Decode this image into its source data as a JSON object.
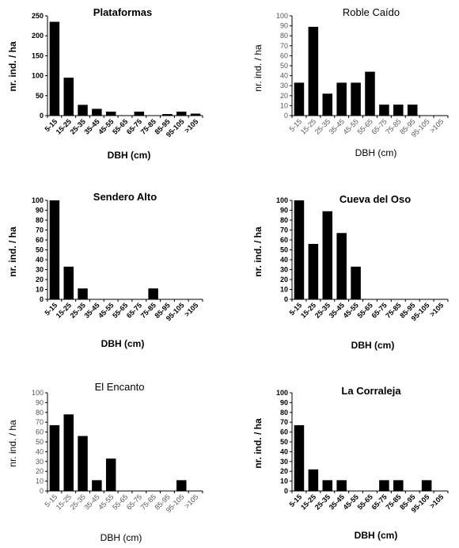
{
  "chart_data": [
    {
      "type": "bar",
      "title": "Plataformas",
      "xlabel": "DBH (cm)",
      "ylabel": "nr. ind. / ha",
      "categories": [
        "5-15",
        "15-25",
        "25-35",
        "35-45",
        "45-55",
        "55-65",
        "65-75",
        "75-85",
        "85-95",
        "95-105",
        ">105"
      ],
      "values": [
        235,
        95,
        27,
        17,
        10,
        0,
        10,
        0,
        4,
        10,
        5
      ],
      "yticks": [
        "0",
        "50",
        "100",
        "150",
        "200",
        "250"
      ],
      "ylim": [
        0,
        250
      ],
      "grid": false,
      "bar_color": "#000000"
    },
    {
      "type": "bar",
      "title": "Roble Caído",
      "xlabel": "DBH (cm)",
      "ylabel": "nr. ind. / ha",
      "categories": [
        "5-15",
        "15-25",
        "25-35",
        "35-45",
        "45-55",
        "55-65",
        "65-75",
        "75-85",
        "85-95",
        "95-105",
        ">105"
      ],
      "values": [
        33,
        89,
        22,
        33,
        33,
        44,
        11,
        11,
        11,
        0,
        0
      ],
      "yticks": [
        "0",
        "10",
        "20",
        "30",
        "40",
        "50",
        "60",
        "70",
        "80",
        "90",
        "100"
      ],
      "ylim": [
        0,
        100
      ],
      "grid": false,
      "bar_color": "#000000"
    },
    {
      "type": "bar",
      "title": "Sendero Alto",
      "xlabel": "DBH (cm)",
      "ylabel": "nr. ind. / ha",
      "categories": [
        "5-15",
        "15-25",
        "25-35",
        "35-45",
        "45-55",
        "55-65",
        "65-75",
        "75-85",
        "85-95",
        "95-105",
        ">105"
      ],
      "values": [
        100,
        33,
        11,
        0,
        0,
        0,
        0,
        11,
        0,
        0,
        0
      ],
      "yticks": [
        "0",
        "10",
        "20",
        "30",
        "40",
        "50",
        "60",
        "70",
        "80",
        "90",
        "100"
      ],
      "ylim": [
        0,
        100
      ],
      "grid": false,
      "bar_color": "#000000"
    },
    {
      "type": "bar",
      "title": "Cueva del Oso",
      "xlabel": "DBH (cm)",
      "ylabel": "nr. ind. / ha",
      "categories": [
        "5-15",
        "15-25",
        "25-35",
        "35-45",
        "45-55",
        "55-65",
        "65-75",
        "75-85",
        "85-95",
        "95-105",
        ">105"
      ],
      "values": [
        100,
        56,
        89,
        67,
        33,
        0,
        0,
        0,
        0,
        0,
        0
      ],
      "yticks": [
        "0",
        "10",
        "20",
        "30",
        "40",
        "50",
        "60",
        "70",
        "80",
        "90",
        "100"
      ],
      "ylim": [
        0,
        100
      ],
      "grid": false,
      "bar_color": "#000000"
    },
    {
      "type": "bar",
      "title": "El Encanto",
      "xlabel": "DBH (cm)",
      "ylabel": "nr. ind. / ha",
      "categories": [
        "5-15",
        "15-25",
        "25-35",
        "35-45",
        "45-55",
        "55-65",
        "65-75",
        "75-85",
        "85-95",
        "95-105",
        ">105"
      ],
      "values": [
        67,
        78,
        56,
        11,
        33,
        0,
        0,
        0,
        0,
        11,
        0
      ],
      "yticks": [
        "0",
        "10",
        "20",
        "30",
        "40",
        "50",
        "60",
        "70",
        "80",
        "90",
        "100"
      ],
      "ylim": [
        0,
        100
      ],
      "grid": false,
      "bar_color": "#000000"
    },
    {
      "type": "bar",
      "title": "La Corraleja",
      "xlabel": "DBH (cm)",
      "ylabel": "nr. ind. / ha",
      "categories": [
        "5-15",
        "15-25",
        "25-35",
        "35-45",
        "45-55",
        "55-65",
        "65-75",
        "75-85",
        "85-95",
        "95-105",
        ">105"
      ],
      "values": [
        67,
        22,
        11,
        11,
        0,
        0,
        11,
        11,
        0,
        11,
        0
      ],
      "yticks": [
        "0",
        "10",
        "20",
        "30",
        "40",
        "50",
        "60",
        "70",
        "80",
        "90",
        "100"
      ],
      "ylim": [
        0,
        100
      ],
      "grid": false,
      "bar_color": "#000000"
    }
  ]
}
